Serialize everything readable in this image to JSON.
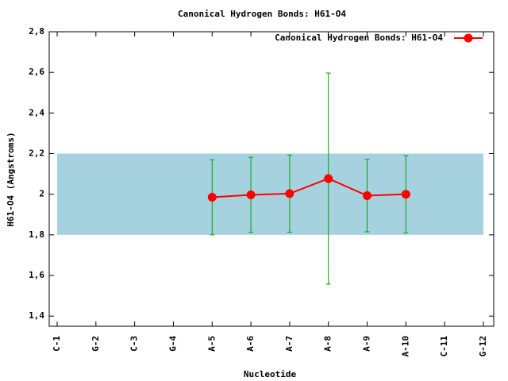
{
  "chart_data": {
    "type": "line",
    "title": "Canonical Hydrogen Bonds: H61-O4",
    "x_label": "Nucleotide",
    "y_label": "H61-O4 (Angstroms)",
    "categories": [
      "C-1",
      "G-2",
      "C-3",
      "G-4",
      "A-5",
      "A-6",
      "A-7",
      "A-8",
      "A-9",
      "A-10",
      "C-11",
      "G-12"
    ],
    "series": [
      {
        "name": "Canonical Hydrogen Bonds: H61-O4",
        "color": "#ff0000",
        "error_color": "#00a000",
        "values": [
          null,
          null,
          null,
          null,
          1.985,
          1.997,
          2.003,
          2.077,
          1.993,
          2.0,
          null,
          null
        ],
        "errors": [
          null,
          null,
          null,
          null,
          0.185,
          0.185,
          0.19,
          0.52,
          0.178,
          0.19,
          null,
          null
        ]
      }
    ],
    "band": [
      1.8,
      2.2
    ],
    "band_color": "#a6d2e0",
    "ylim": [
      1.35,
      2.8
    ],
    "yticks": [
      {
        "value": 1.4,
        "label": "1,4"
      },
      {
        "value": 1.6,
        "label": "1,6"
      },
      {
        "value": 1.8,
        "label": "1,8"
      },
      2,
      {
        "value": 2.2,
        "label": "2,2"
      },
      {
        "value": 2.4,
        "label": "2,4"
      },
      {
        "value": 2.6,
        "label": "2,6"
      },
      {
        "value": 2.8,
        "label": "2,8"
      }
    ],
    "legend": "top-right"
  }
}
